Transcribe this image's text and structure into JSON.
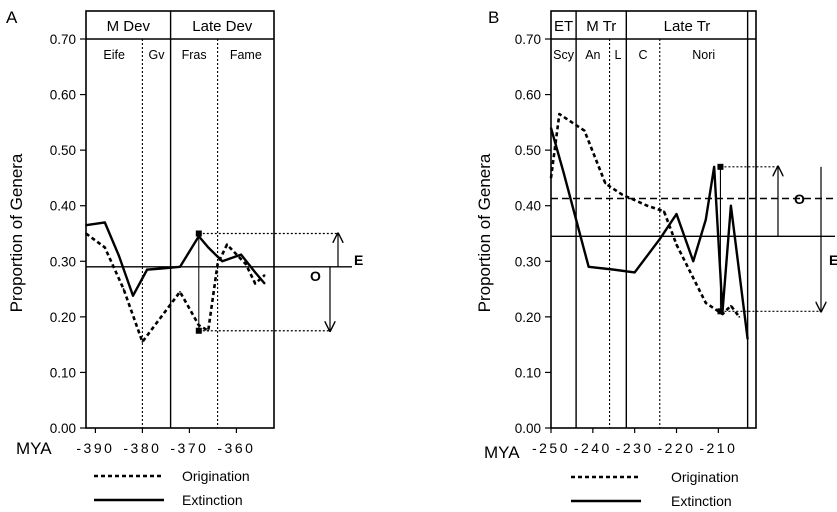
{
  "chart_data": [
    {
      "panel_label": "A",
      "type": "line",
      "ylabel": "Proportion of Genera",
      "xlabel": "MYA",
      "xlim": [
        392,
        352
      ],
      "ylim": [
        0,
        0.7
      ],
      "y_ticks": [
        "0.00",
        "0.10",
        "0.20",
        "0.30",
        "0.40",
        "0.50",
        "0.60",
        "0.70"
      ],
      "x_ticks": [
        {
          "value": 390,
          "label": "-390"
        },
        {
          "value": 380,
          "label": "-380"
        },
        {
          "value": 370,
          "label": "-370"
        },
        {
          "value": 360,
          "label": "-360"
        }
      ],
      "epochs": [
        {
          "label": "M Dev",
          "from": 392,
          "to": 374
        },
        {
          "label": "Late Dev",
          "from": 374,
          "to": 352
        }
      ],
      "stages": [
        {
          "label": "Eife",
          "from": 392,
          "to": 380
        },
        {
          "label": "Gv",
          "from": 380,
          "to": 374
        },
        {
          "label": "Fras",
          "from": 374,
          "to": 364
        },
        {
          "label": "Fame",
          "from": 364,
          "to": 352
        }
      ],
      "epoch_boundaries": [
        374
      ],
      "stage_boundaries": [
        380,
        364
      ],
      "series": [
        {
          "name": "Origination",
          "style": "dashed",
          "x": [
            392,
            388,
            384,
            380,
            376,
            372,
            368,
            366,
            364,
            362,
            358,
            356,
            354
          ],
          "y": [
            0.35,
            0.325,
            0.25,
            0.155,
            0.2,
            0.245,
            0.185,
            0.175,
            0.295,
            0.33,
            0.295,
            0.26,
            0.275
          ]
        },
        {
          "name": "Extinction",
          "style": "solid",
          "x": [
            392,
            388,
            385,
            382,
            379,
            376,
            372,
            368,
            366,
            363,
            359,
            356,
            354
          ],
          "y": [
            0.365,
            0.37,
            0.31,
            0.238,
            0.285,
            0.287,
            0.29,
            0.345,
            0.325,
            0.3,
            0.312,
            0.28,
            0.26
          ]
        }
      ],
      "reference_lines": [
        {
          "name": "mean",
          "value": 0.29,
          "style": "solid"
        }
      ],
      "annotations": [
        {
          "label": "E",
          "x": 368,
          "from": 0.29,
          "to": 0.35,
          "direction": "up"
        },
        {
          "label": "O",
          "x": 368,
          "from": 0.29,
          "to": 0.175,
          "direction": "down"
        }
      ]
    },
    {
      "panel_label": "B",
      "type": "line",
      "ylabel": "Proportion of Genera",
      "xlabel": "MYA",
      "xlim": [
        250,
        201
      ],
      "ylim": [
        0,
        0.7
      ],
      "y_ticks": [
        "0.00",
        "0.10",
        "0.20",
        "0.30",
        "0.40",
        "0.50",
        "0.60",
        "0.70"
      ],
      "x_ticks": [
        {
          "value": 250,
          "label": "-250"
        },
        {
          "value": 240,
          "label": "-240"
        },
        {
          "value": 230,
          "label": "-230"
        },
        {
          "value": 220,
          "label": "-220"
        },
        {
          "value": 210,
          "label": "-210"
        }
      ],
      "epochs": [
        {
          "label": "ET",
          "from": 250,
          "to": 244
        },
        {
          "label": "M Tr",
          "from": 244,
          "to": 232
        },
        {
          "label": "Late Tr",
          "from": 232,
          "to": 203
        }
      ],
      "stages": [
        {
          "label": "Scy",
          "from": 250,
          "to": 244
        },
        {
          "label": "An",
          "from": 244,
          "to": 236
        },
        {
          "label": "L",
          "from": 236,
          "to": 232
        },
        {
          "label": "C",
          "from": 232,
          "to": 224
        },
        {
          "label": "Nori",
          "from": 224,
          "to": 203
        }
      ],
      "epoch_boundaries": [
        244,
        232,
        203
      ],
      "stage_boundaries": [
        236,
        224
      ],
      "series": [
        {
          "name": "Origination",
          "style": "dashed",
          "x": [
            250,
            248,
            242,
            237,
            233,
            227,
            223,
            220,
            216,
            213,
            209,
            207,
            205
          ],
          "y": [
            0.45,
            0.565,
            0.535,
            0.44,
            0.42,
            0.4,
            0.39,
            0.33,
            0.27,
            0.225,
            0.205,
            0.22,
            0.2
          ]
        },
        {
          "name": "Extinction",
          "style": "solid",
          "x": [
            250,
            247,
            241,
            235,
            230,
            224,
            220,
            216,
            213,
            211,
            209,
            207,
            203
          ],
          "y": [
            0.54,
            0.46,
            0.29,
            0.285,
            0.28,
            0.34,
            0.385,
            0.3,
            0.375,
            0.47,
            0.21,
            0.4,
            0.16
          ]
        }
      ],
      "reference_lines": [
        {
          "name": "mean extinction",
          "value": 0.345,
          "style": "solid"
        },
        {
          "name": "mean origination",
          "value": 0.413,
          "style": "dashed"
        }
      ],
      "annotations": [
        {
          "label": "O",
          "x": 209.5,
          "from": 0.47,
          "to": 0.21,
          "direction": "down"
        },
        {
          "label": "E",
          "x": 209.5,
          "from": 0.345,
          "to": 0.47,
          "direction": "up"
        }
      ]
    }
  ]
}
